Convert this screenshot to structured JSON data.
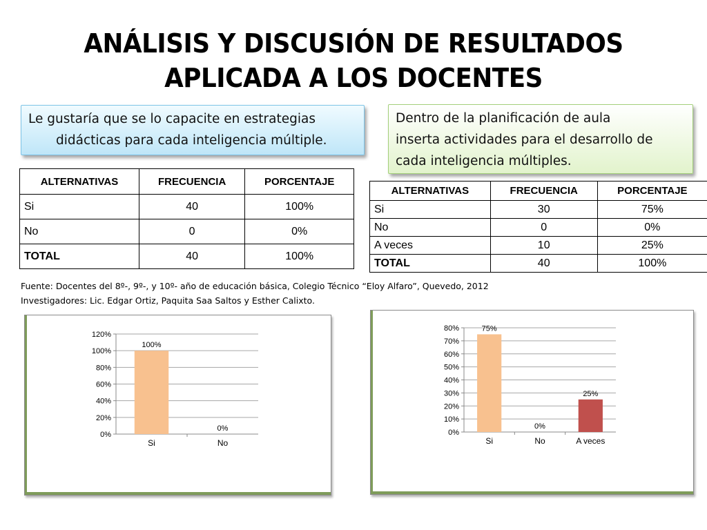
{
  "title": {
    "line1": "ANÁLISIS Y DISCUSIÓN DE RESULTADOS",
    "line2": "APLICADA A LOS DOCENTES"
  },
  "question_left": {
    "line1": "Le gustaría que se lo capacite en estrategias",
    "line2": "didácticas para cada inteligencia múltiple."
  },
  "question_right": {
    "line1": "Dentro de la planificación de aula",
    "line2": "inserta actividades para el desarrollo de",
    "line3": "cada inteligencia múltiples."
  },
  "table_left": {
    "headers": [
      "ALTERNATIVAS",
      "FRECUENCIA",
      "PORCENTAJE"
    ],
    "rows": [
      [
        "Si",
        "40",
        "100%"
      ],
      [
        "No",
        "0",
        "0%"
      ],
      [
        "TOTAL",
        "40",
        "100%"
      ]
    ]
  },
  "table_right": {
    "headers": [
      "ALTERNATIVAS",
      "FRECUENCIA",
      "PORCENTAJE"
    ],
    "rows": [
      [
        "Si",
        "30",
        "75%"
      ],
      [
        "No",
        "0",
        "0%"
      ],
      [
        "A veces",
        "10",
        "25%"
      ],
      [
        "TOTAL",
        "40",
        "100%"
      ]
    ]
  },
  "source": {
    "line1": "Fuente: Docentes del 8º-, 9º-, y 10º-  año de educación básica, Colegio Técnico “Eloy Alfaro”, Quevedo, 2012",
    "line2": "Investigadores: Lic. Edgar Ortiz, Paquita Saa Saltos y Esther Calixto."
  },
  "chart_data": [
    {
      "type": "bar",
      "categories": [
        "Si",
        "No"
      ],
      "values": [
        100,
        0
      ],
      "data_labels": [
        "100%",
        "0%"
      ],
      "y_ticks": [
        "0%",
        "20%",
        "40%",
        "60%",
        "80%",
        "100%",
        "120%"
      ],
      "ylim": [
        0,
        120
      ],
      "colors": [
        "#f8c18f",
        "#f8c18f"
      ],
      "grid": true
    },
    {
      "type": "bar",
      "categories": [
        "Si",
        "No",
        "A veces"
      ],
      "values": [
        75,
        0,
        25
      ],
      "data_labels": [
        "75%",
        "0%",
        "25%"
      ],
      "y_ticks": [
        "0%",
        "10%",
        "20%",
        "30%",
        "40%",
        "50%",
        "60%",
        "70%",
        "80%"
      ],
      "ylim": [
        0,
        80
      ],
      "colors": [
        "#f8c18f",
        "#f8c18f",
        "#c0504d"
      ],
      "grid": true
    }
  ]
}
